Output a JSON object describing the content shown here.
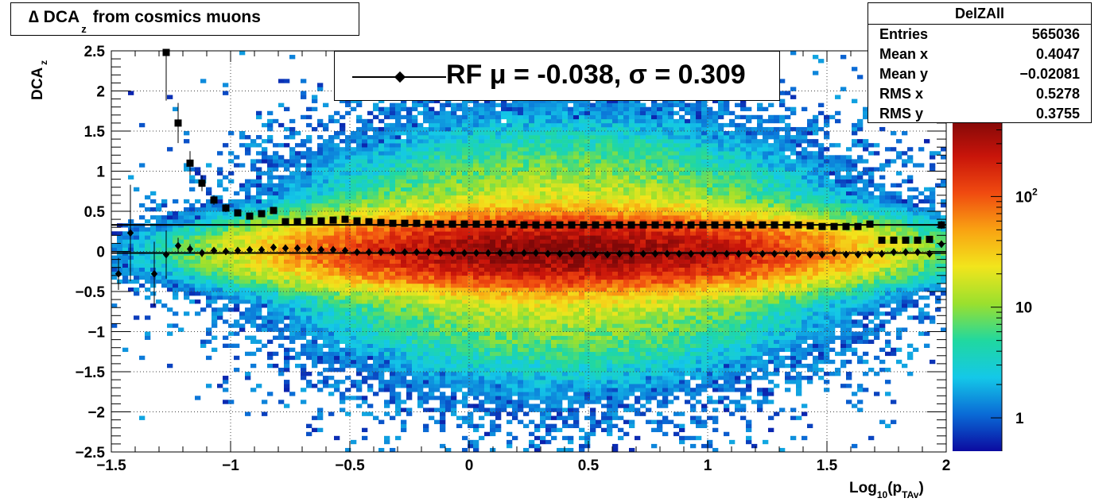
{
  "chart_data": {
    "type": "heatmap",
    "title": "∆ DCA",
    "title_sub": "z",
    "title_rest": "from cosmics muons",
    "ylabel": "DCA",
    "ylabel_sub": "z",
    "xlabel_main": "Log",
    "xlabel_sub": "10",
    "xlabel_paren": "(p",
    "xlabel_sub2": "TAv",
    "xlabel_close": ")",
    "xlim": [
      -1.5,
      2
    ],
    "ylim": [
      -2.5,
      2.5
    ],
    "x_ticks": [
      "−1.5",
      "−1",
      "−0.5",
      "0",
      "0.5",
      "1",
      "1.5",
      "2"
    ],
    "y_ticks": [
      "−2.5",
      "−2",
      "−1.5",
      "−1",
      "−0.5",
      "0",
      "0.5",
      "1",
      "1.5",
      "2",
      "2.5"
    ],
    "grid": true,
    "colorbar": {
      "scale": "log",
      "range": [
        0.5,
        500
      ],
      "ticks": [
        "1",
        "10",
        "10"
      ],
      "tick_sup": "2"
    },
    "legend": {
      "label": "RF μ = -0.038, σ =   0.309",
      "position": "top-center"
    },
    "stats": {
      "title": "DelZAll",
      "rows": [
        {
          "key": "Entries",
          "value": "565036"
        },
        {
          "key": "Mean x",
          "value": "0.4047"
        },
        {
          "key": "Mean y",
          "value": "−0.02081"
        },
        {
          "key": "RMS x",
          "value": "0.5278"
        },
        {
          "key": "RMS y",
          "value": "0.3755"
        }
      ]
    },
    "series": [
      {
        "marker": "square",
        "x": [
          -1.27,
          -1.22,
          -1.17,
          -1.12,
          -1.07,
          -1.02,
          -0.97,
          -0.92,
          -0.87,
          -0.82,
          -0.77,
          -0.72,
          -0.67,
          -0.62,
          -0.57,
          -0.52,
          -0.47,
          -0.42,
          -0.37,
          -0.32,
          -0.27,
          -0.22,
          -0.17,
          -0.12,
          -0.07,
          -0.02,
          0.03,
          0.08,
          0.13,
          0.18,
          0.23,
          0.28,
          0.33,
          0.38,
          0.43,
          0.48,
          0.53,
          0.58,
          0.63,
          0.68,
          0.73,
          0.78,
          0.83,
          0.88,
          0.93,
          0.98,
          1.03,
          1.08,
          1.13,
          1.18,
          1.23,
          1.28,
          1.33,
          1.38,
          1.43,
          1.48,
          1.53,
          1.58,
          1.63,
          1.68,
          1.73,
          1.78,
          1.83,
          1.88,
          1.93,
          1.98
        ],
        "y": [
          2.48,
          1.6,
          1.1,
          0.85,
          0.64,
          0.54,
          0.48,
          0.44,
          0.47,
          0.51,
          0.37,
          0.37,
          0.38,
          0.38,
          0.39,
          0.4,
          0.38,
          0.37,
          0.36,
          0.35,
          0.35,
          0.35,
          0.34,
          0.34,
          0.34,
          0.34,
          0.34,
          0.34,
          0.34,
          0.34,
          0.33,
          0.33,
          0.33,
          0.33,
          0.33,
          0.33,
          0.33,
          0.33,
          0.33,
          0.33,
          0.33,
          0.33,
          0.33,
          0.33,
          0.33,
          0.33,
          0.33,
          0.33,
          0.33,
          0.33,
          0.33,
          0.33,
          0.33,
          0.33,
          0.32,
          0.31,
          0.31,
          0.31,
          0.31,
          0.34,
          0.14,
          0.14,
          0.14,
          0.14,
          0.15,
          0.33
        ],
        "yerr": [
          0.6,
          0.25,
          0.15,
          0.1,
          0.06,
          0.05,
          0.04,
          0.04,
          0.04,
          0.03,
          0.02,
          0.02,
          0.02,
          0.02,
          0.02,
          0.02,
          0.02,
          0.01,
          0.01,
          0.01,
          0.01,
          0.01,
          0.01,
          0.01,
          0.01,
          0.01,
          0.01,
          0.01,
          0.01,
          0.01,
          0.01,
          0.01,
          0.01,
          0.01,
          0.01,
          0.01,
          0.01,
          0.01,
          0.01,
          0.01,
          0.01,
          0.01,
          0.01,
          0.01,
          0.01,
          0.01,
          0.01,
          0.01,
          0.01,
          0.01,
          0.01,
          0.01,
          0.01,
          0.01,
          0.01,
          0.01,
          0.02,
          0.02,
          0.02,
          0.02,
          0.03,
          0.03,
          0.03,
          0.03,
          0.03,
          0.05
        ],
        "fit": {
          "y_left": 0.33,
          "y_right": 0.33
        }
      },
      {
        "marker": "diamond",
        "x": [
          -1.47,
          -1.42,
          -1.32,
          -1.27,
          -1.22,
          -1.17,
          -1.12,
          -1.07,
          -1.02,
          -0.97,
          -0.92,
          -0.87,
          -0.82,
          -0.77,
          -0.72,
          -0.67,
          -0.62,
          -0.57,
          -0.52,
          -0.47,
          -0.42,
          -0.37,
          -0.32,
          -0.27,
          -0.22,
          -0.17,
          -0.12,
          -0.07,
          -0.02,
          0.03,
          0.08,
          0.13,
          0.18,
          0.23,
          0.28,
          0.33,
          0.38,
          0.43,
          0.48,
          0.53,
          0.58,
          0.63,
          0.68,
          0.73,
          0.78,
          0.83,
          0.88,
          0.93,
          0.98,
          1.03,
          1.08,
          1.13,
          1.18,
          1.23,
          1.28,
          1.33,
          1.38,
          1.43,
          1.48,
          1.53,
          1.58,
          1.63,
          1.68,
          1.73,
          1.78,
          1.83,
          1.88,
          1.93,
          1.98
        ],
        "y": [
          -0.28,
          0.23,
          -0.28,
          -0.04,
          0.07,
          0.03,
          -0.02,
          0.01,
          0.0,
          0.01,
          0.02,
          0.02,
          0.05,
          0.04,
          0.04,
          0.03,
          0.02,
          0.02,
          0.01,
          -0.01,
          -0.01,
          -0.01,
          -0.01,
          -0.01,
          -0.01,
          -0.01,
          -0.02,
          -0.02,
          -0.02,
          -0.02,
          -0.02,
          -0.02,
          -0.02,
          -0.02,
          -0.02,
          -0.03,
          -0.03,
          -0.03,
          -0.03,
          -0.04,
          -0.04,
          -0.03,
          -0.03,
          -0.03,
          -0.03,
          -0.03,
          -0.03,
          -0.03,
          -0.03,
          -0.03,
          -0.03,
          -0.03,
          -0.03,
          -0.03,
          -0.03,
          -0.03,
          -0.03,
          -0.04,
          -0.04,
          -0.02,
          -0.04,
          -0.04,
          -0.04,
          -0.03,
          -0.01,
          -0.01,
          -0.01,
          -0.03,
          0.09
        ],
        "yerr": [
          0.2,
          0.6,
          0.4,
          0.3,
          0.1,
          0.06,
          0.05,
          0.03,
          0.02,
          0.02,
          0.02,
          0.02,
          0.02,
          0.01,
          0.01,
          0.01,
          0.01,
          0.01,
          0.01,
          0.01,
          0.01,
          0.01,
          0.01,
          0.01,
          0.01,
          0.01,
          0.01,
          0.01,
          0.01,
          0.01,
          0.01,
          0.01,
          0.01,
          0.01,
          0.01,
          0.01,
          0.01,
          0.01,
          0.01,
          0.01,
          0.01,
          0.01,
          0.01,
          0.01,
          0.01,
          0.01,
          0.01,
          0.01,
          0.01,
          0.01,
          0.01,
          0.01,
          0.01,
          0.01,
          0.01,
          0.01,
          0.01,
          0.01,
          0.01,
          0.01,
          0.02,
          0.02,
          0.02,
          0.02,
          0.02,
          0.02,
          0.02,
          0.02,
          0.04
        ],
        "fit": {
          "y_left": -0.02,
          "y_right": -0.02
        }
      }
    ],
    "density_model": {
      "x_center": 0.4,
      "x_sigma": 0.55,
      "y_sigma_core": 0.22,
      "y_sigma_tail": 0.7,
      "peak": 450
    },
    "colors": [
      "#0b0aa0",
      "#0a6bd6",
      "#14c8e8",
      "#20d8a0",
      "#9ae02e",
      "#f2e51c",
      "#f9a212",
      "#f04a10",
      "#c8140a",
      "#800808"
    ]
  }
}
